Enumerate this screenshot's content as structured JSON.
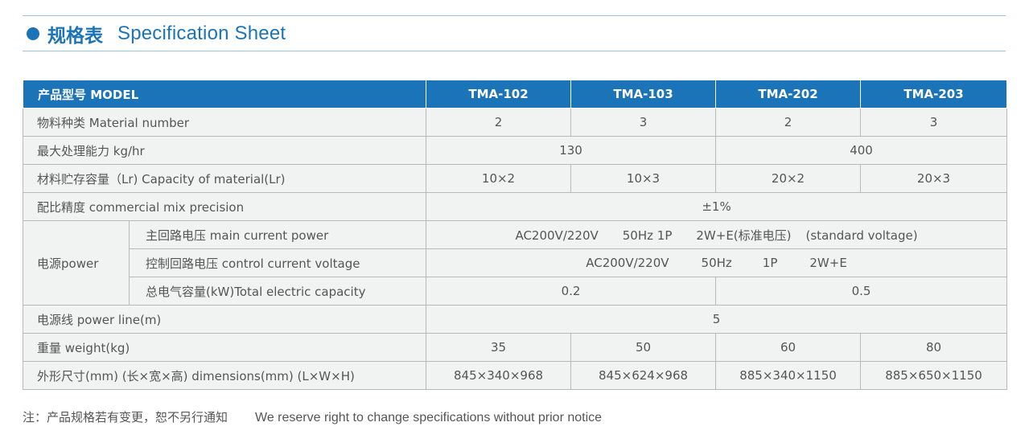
{
  "header": {
    "title_cn": "规格表",
    "title_en": "Specification Sheet"
  },
  "table": {
    "model_header": "产品型号 MODEL",
    "models": [
      "TMA-102",
      "TMA-103",
      "TMA-202",
      "TMA-203"
    ],
    "material_number": {
      "label": "物料种类 Material number",
      "values": [
        "2",
        "3",
        "2",
        "3"
      ]
    },
    "capacity_max": {
      "label": "最大处理能力 kg/hr",
      "values": [
        "130",
        "400"
      ]
    },
    "storage": {
      "label": "材料贮存容量（Lr) Capacity of material(Lr)",
      "values": [
        "10×2",
        "10×3",
        "20×2",
        "20×3"
      ]
    },
    "precision": {
      "label": "配比精度 commercial mix precision",
      "value": "±1%"
    },
    "power": {
      "label": "电源power",
      "main": {
        "label": "主回路电压 main current power",
        "parts": [
          "AC200V/220V",
          "50Hz 1P",
          "2W+E(标准电压)",
          "(standard voltage)"
        ]
      },
      "control": {
        "label": "控制回路电压 control current voltage",
        "parts": [
          "AC200V/220V",
          "50Hz",
          "1P",
          "2W+E"
        ]
      },
      "total": {
        "label": "总电气容量(kW)Total electric capacity",
        "values": [
          "0.2",
          "0.5"
        ]
      }
    },
    "power_line": {
      "label": "电源线 power line(m)",
      "value": "5"
    },
    "weight": {
      "label": "重量 weight(kg)",
      "values": [
        "35",
        "50",
        "60",
        "80"
      ]
    },
    "dimensions": {
      "label": "外形尺寸(mm) (长×宽×高) dimensions(mm) (L×W×H)",
      "values": [
        "845×340×968",
        "845×624×968",
        "885×340×1150",
        "885×650×1150"
      ]
    }
  },
  "footer": {
    "note_cn": "注：产品规格若有变更，恕不另行通知",
    "note_en": "We reserve right to change specifications without prior notice"
  },
  "colors": {
    "accent": "#1c74b8",
    "row_bg": "#f1f2f2",
    "border": "#b9b9b9"
  }
}
